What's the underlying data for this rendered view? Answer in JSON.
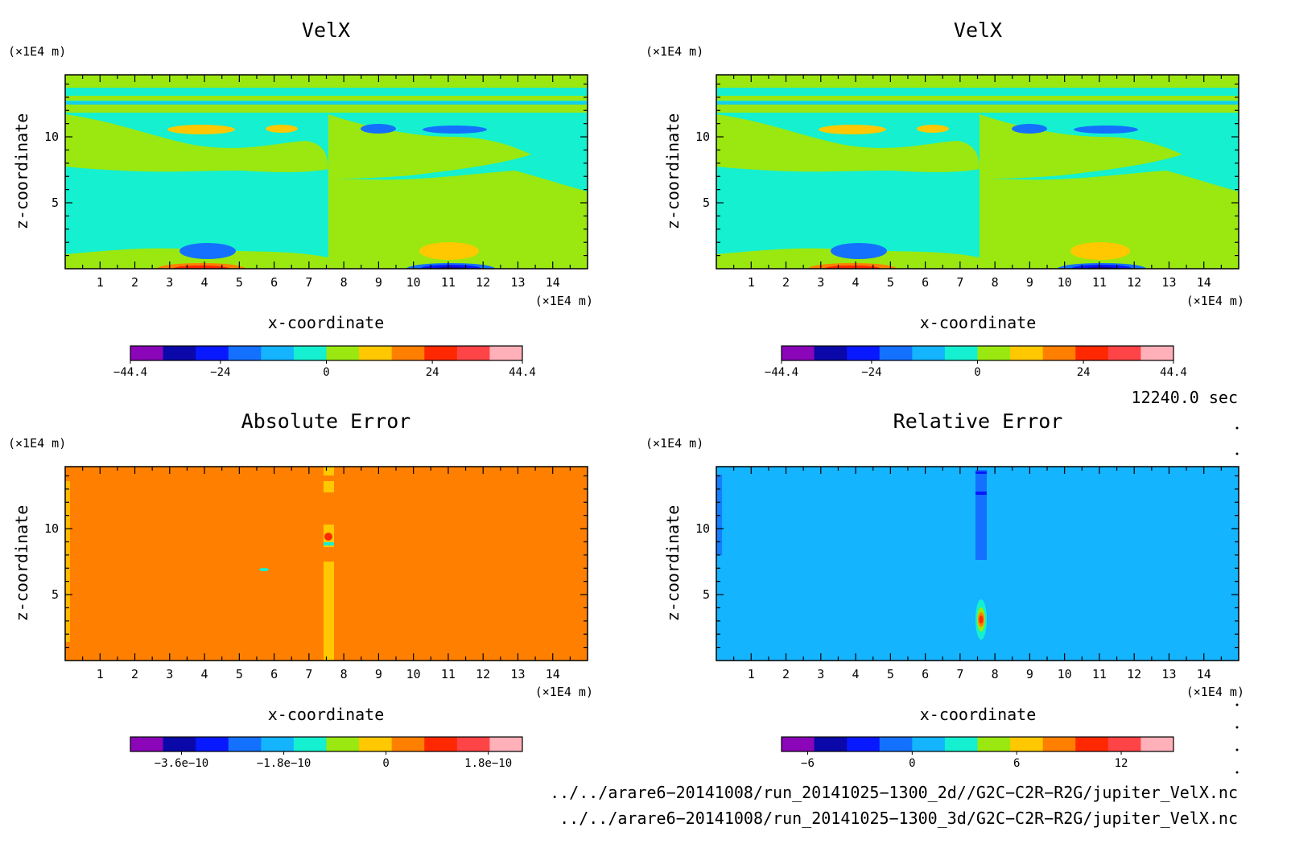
{
  "colors": {
    "levels": [
      "#8a06b8",
      "#0a08a8",
      "#0818ff",
      "#1470ff",
      "#14b4ff",
      "#14f0d0",
      "#9ae810",
      "#ffc800",
      "#ff8000",
      "#ff2800",
      "#ff4448",
      "#ffb0b8"
    ],
    "frame": "#000000"
  },
  "chart_data": [
    {
      "type": "heatmap",
      "title": "VelX",
      "xlabel": "x-coordinate",
      "ylabel": "z-coordinate",
      "x_unit": "(×1E4 m)",
      "y_unit": "(×1E4 m)",
      "xlim": [
        0,
        15
      ],
      "ylim": [
        0,
        14.7
      ],
      "xticks": [
        "1",
        "2",
        "3",
        "4",
        "5",
        "6",
        "7",
        "8",
        "9",
        "10",
        "11",
        "12",
        "13",
        "14"
      ],
      "yticks": [
        "5",
        "10"
      ],
      "colorbar": {
        "range": [
          -44.4,
          44.4
        ],
        "ticks": [
          "−44.4",
          "−24",
          "0",
          "24",
          "44.4"
        ]
      }
    },
    {
      "type": "heatmap",
      "title": "VelX",
      "xlabel": "x-coordinate",
      "ylabel": "z-coordinate",
      "x_unit": "(×1E4 m)",
      "y_unit": "(×1E4 m)",
      "xlim": [
        0,
        15
      ],
      "ylim": [
        0,
        14.7
      ],
      "xticks": [
        "1",
        "2",
        "3",
        "4",
        "5",
        "6",
        "7",
        "8",
        "9",
        "10",
        "11",
        "12",
        "13",
        "14"
      ],
      "yticks": [
        "5",
        "10"
      ],
      "colorbar": {
        "range": [
          -44.4,
          44.4
        ],
        "ticks": [
          "−44.4",
          "−24",
          "0",
          "24",
          "44.4"
        ]
      }
    },
    {
      "type": "heatmap",
      "title": "Absolute Error",
      "xlabel": "x-coordinate",
      "ylabel": "z-coordinate",
      "x_unit": "(×1E4 m)",
      "y_unit": "(×1E4 m)",
      "xlim": [
        0,
        15
      ],
      "ylim": [
        0,
        14.7
      ],
      "xticks": [
        "1",
        "2",
        "3",
        "4",
        "5",
        "6",
        "7",
        "8",
        "9",
        "10",
        "11",
        "12",
        "13",
        "14"
      ],
      "yticks": [
        "5",
        "10"
      ],
      "colorbar": {
        "range": [
          -4.5e-10,
          2.4e-10
        ],
        "ticks": [
          "−3.6e−10",
          "−1.8e−10",
          "0",
          "1.8e−10"
        ]
      }
    },
    {
      "type": "heatmap",
      "title": "Relative Error",
      "xlabel": "x-coordinate",
      "ylabel": "z-coordinate",
      "x_unit": "(×1E4 m)",
      "y_unit": "(×1E4 m)",
      "xlim": [
        0,
        15
      ],
      "ylim": [
        0,
        14.7
      ],
      "xticks": [
        "1",
        "2",
        "3",
        "4",
        "5",
        "6",
        "7",
        "8",
        "9",
        "10",
        "11",
        "12",
        "13",
        "14"
      ],
      "yticks": [
        "5",
        "10"
      ],
      "colorbar": {
        "range": [
          -7.5,
          15
        ],
        "ticks": [
          "−6",
          "0",
          "6",
          "12"
        ]
      }
    }
  ],
  "time_label": "12240.0 sec",
  "footer": {
    "file1": "../../arare6−20141008/run_20141025−1300_2d//G2C−C2R−R2G/jupiter_VelX.nc",
    "file2": "../../arare6−20141008/run_20141025−1300_3d/G2C−C2R−R2G/jupiter_VelX.nc"
  }
}
